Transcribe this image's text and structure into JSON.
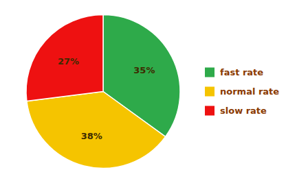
{
  "chart_data": {
    "type": "pie",
    "categories": [
      "fast rate",
      "normal rate",
      "slow rate"
    ],
    "values": [
      35,
      38,
      27
    ],
    "value_labels": [
      "35%",
      "38%",
      "27%"
    ],
    "colors": [
      "#2eaa4a",
      "#f5c400",
      "#ee1111"
    ],
    "legend": "right",
    "data_labels": true
  }
}
